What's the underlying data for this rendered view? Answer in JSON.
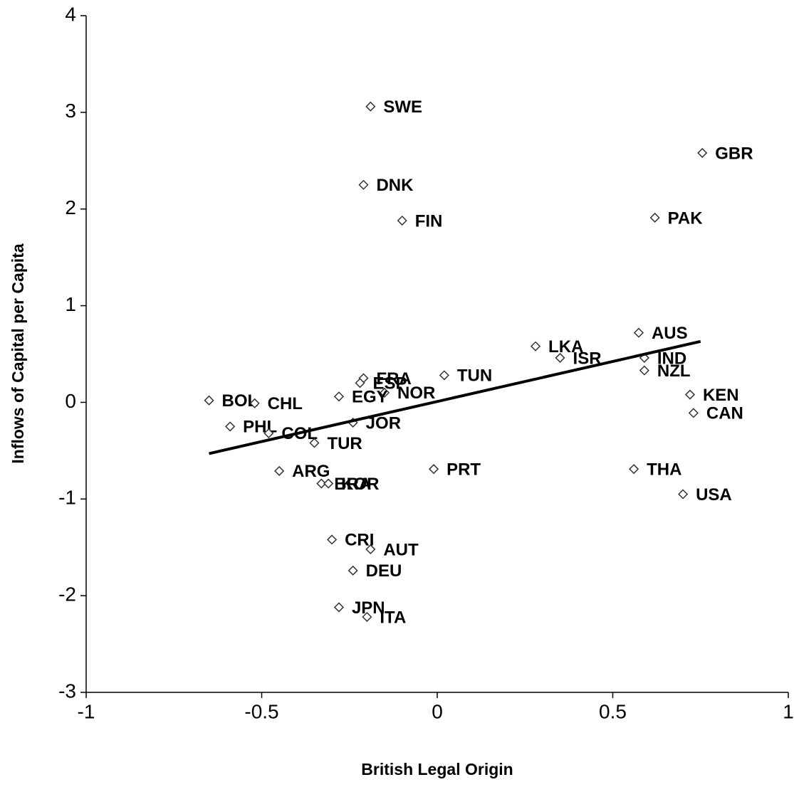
{
  "chart_data": {
    "type": "scatter",
    "xlabel": "British Legal Origin",
    "ylabel": "Inflows of Capital per Capita",
    "marker_color": "#333333",
    "trend_color": "#000000",
    "labels": [
      "SWE",
      "GBR",
      "DNK",
      "PAK",
      "FIN",
      "AUS",
      "LKA",
      "ISR",
      "IND",
      "NZL",
      "TUN",
      "FRA",
      "ESP",
      "NOR",
      "EGY",
      "KEN",
      "BOL",
      "CHL",
      "CAN",
      "PHL",
      "JOR",
      "COL",
      "TUR",
      "ARG",
      "PRT",
      "THA",
      "BRA",
      "KOR",
      "USA",
      "CRI",
      "AUT",
      "DEU",
      "JPN",
      "ITA"
    ],
    "x": [
      -0.19,
      0.755,
      -0.21,
      0.62,
      -0.1,
      0.574,
      0.28,
      0.35,
      0.59,
      0.59,
      0.02,
      -0.21,
      -0.22,
      -0.15,
      -0.28,
      0.72,
      -0.65,
      -0.52,
      0.73,
      -0.59,
      -0.24,
      -0.48,
      -0.35,
      -0.45,
      -0.01,
      0.56,
      -0.33,
      -0.31,
      0.7,
      -0.3,
      -0.19,
      -0.24,
      -0.28,
      -0.2
    ],
    "y": [
      3.06,
      2.58,
      2.25,
      1.91,
      1.88,
      0.72,
      0.58,
      0.46,
      0.46,
      0.33,
      0.28,
      0.25,
      0.2,
      0.1,
      0.06,
      0.08,
      0.02,
      -0.01,
      -0.11,
      -0.25,
      -0.21,
      -0.32,
      -0.42,
      -0.71,
      -0.69,
      -0.69,
      -0.84,
      -0.84,
      -0.95,
      -1.42,
      -1.52,
      -1.74,
      -2.12,
      -2.22
    ],
    "trendline": {
      "x": [
        -0.65,
        0.75
      ],
      "y": [
        -0.53,
        0.63
      ]
    },
    "xlim": [
      -1,
      1
    ],
    "ylim": [
      -3,
      4
    ],
    "xticks": [
      -1,
      -0.5,
      0,
      0.5,
      1
    ],
    "yticks": [
      -3,
      -2,
      -1,
      0,
      1,
      2,
      3,
      4
    ]
  }
}
